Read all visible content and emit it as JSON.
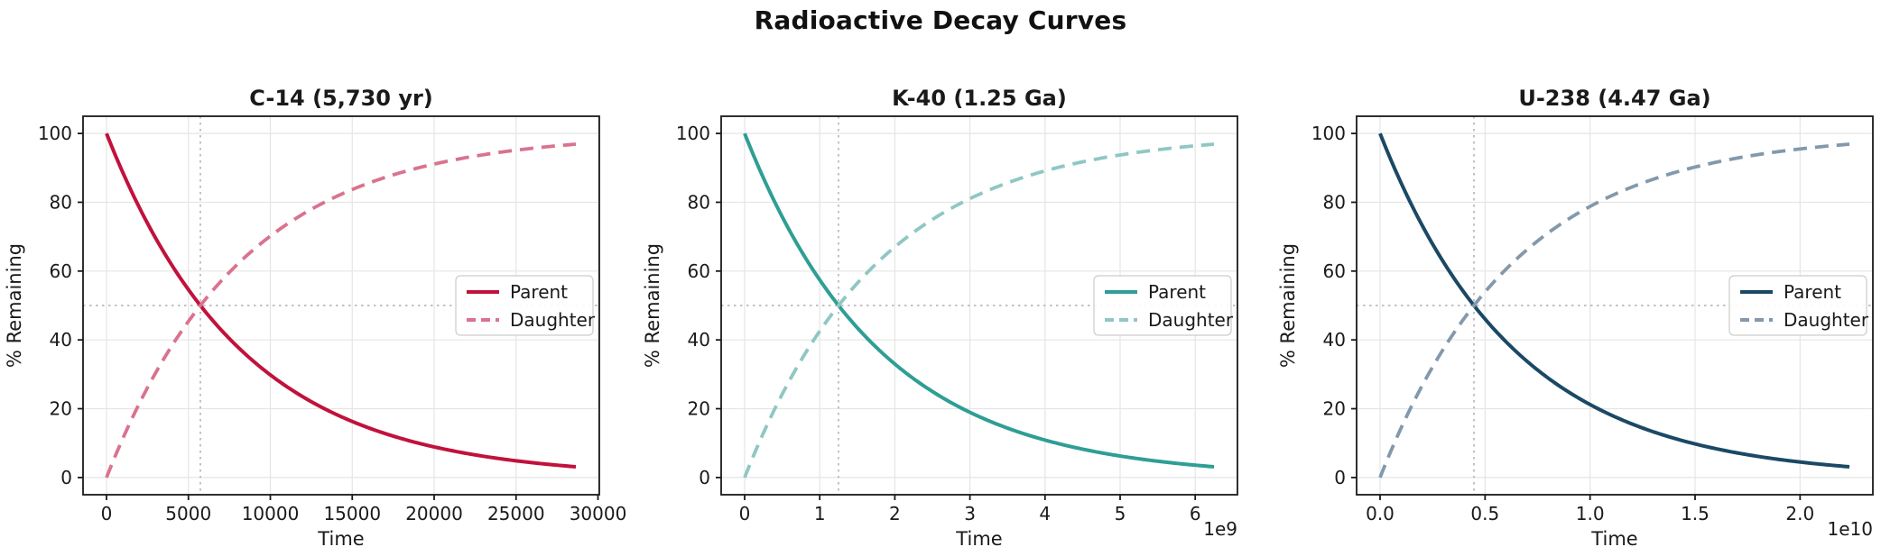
{
  "figure": {
    "title": "Radioactive Decay Curves",
    "background": "#ffffff"
  },
  "style": {
    "spine_color": "#1a1a1a",
    "text_color": "#1a1a1a",
    "grid_color": "#e5e5e5",
    "crosshair_color": "#c2c2c2",
    "legend_border": "#cccccc",
    "legend_background": "#ffffff"
  },
  "chart_data": [
    {
      "type": "line",
      "id": "c14",
      "title": "C-14 (5,730 yr)",
      "isotope": "C-14",
      "half_life": 5730,
      "half_life_label": "5,730 yr",
      "xlabel": "Time",
      "ylabel": "% Remaining",
      "xlim": [
        -1432.5,
        30082.5
      ],
      "ylim": [
        -5,
        105
      ],
      "x_ticks": [
        0,
        5000,
        10000,
        15000,
        20000,
        25000,
        30000
      ],
      "x_tick_labels": [
        "0",
        "5000",
        "10000",
        "15000",
        "20000",
        "25000",
        "30000"
      ],
      "y_ticks": [
        0,
        20,
        40,
        60,
        80,
        100
      ],
      "y_tick_labels": [
        "0",
        "20",
        "40",
        "60",
        "80",
        "100"
      ],
      "offset_label": "",
      "crosshair": {
        "x": 5730,
        "y": 50
      },
      "legend": {
        "location": "center right",
        "entries": [
          "Parent",
          "Daughter"
        ]
      },
      "series": [
        {
          "name": "Parent",
          "kind": "decay",
          "color": "#C1123C",
          "line_style": "solid",
          "x": [
            0,
            2865,
            5730,
            8595,
            11460,
            14325,
            17190,
            20055,
            22920,
            25785,
            28650
          ],
          "y": [
            100,
            70.7,
            50,
            35.4,
            25,
            17.7,
            12.5,
            8.8,
            6.3,
            4.4,
            3.1
          ]
        },
        {
          "name": "Daughter",
          "kind": "ingrowth",
          "color": "#D9738E",
          "line_style": "dashed",
          "x": [
            0,
            2865,
            5730,
            8595,
            11460,
            14325,
            17190,
            20055,
            22920,
            25785,
            28650
          ],
          "y": [
            0,
            29.3,
            50,
            64.6,
            75,
            82.3,
            87.5,
            91.2,
            93.8,
            95.6,
            96.9
          ]
        }
      ]
    },
    {
      "type": "line",
      "id": "k40",
      "title": "K-40 (1.25 Ga)",
      "isotope": "K-40",
      "half_life": 1250000000,
      "half_life_label": "1.25 Ga",
      "xlabel": "Time",
      "ylabel": "% Remaining",
      "xlim": [
        -312500000,
        6562500000
      ],
      "ylim": [
        -5,
        105
      ],
      "x_ticks": [
        0,
        1000000000,
        2000000000,
        3000000000,
        4000000000,
        5000000000,
        6000000000
      ],
      "x_tick_labels": [
        "0",
        "1",
        "2",
        "3",
        "4",
        "5",
        "6"
      ],
      "y_ticks": [
        0,
        20,
        40,
        60,
        80,
        100
      ],
      "y_tick_labels": [
        "0",
        "20",
        "40",
        "60",
        "80",
        "100"
      ],
      "offset_label": "1e9",
      "crosshair": {
        "x": 1250000000,
        "y": 50
      },
      "legend": {
        "location": "center right",
        "entries": [
          "Parent",
          "Daughter"
        ]
      },
      "series": [
        {
          "name": "Parent",
          "kind": "decay",
          "color": "#2F9E94",
          "line_style": "solid",
          "x": [
            0,
            625000000,
            1250000000,
            1875000000,
            2500000000,
            3125000000,
            3750000000,
            4375000000,
            5000000000,
            5625000000,
            6250000000
          ],
          "y": [
            100,
            70.7,
            50,
            35.4,
            25,
            17.7,
            12.5,
            8.8,
            6.3,
            4.4,
            3.1
          ]
        },
        {
          "name": "Daughter",
          "kind": "ingrowth",
          "color": "#8FC7C3",
          "line_style": "dashed",
          "x": [
            0,
            625000000,
            1250000000,
            1875000000,
            2500000000,
            3125000000,
            3750000000,
            4375000000,
            5000000000,
            5625000000,
            6250000000
          ],
          "y": [
            0,
            29.3,
            50,
            64.6,
            75,
            82.3,
            87.5,
            91.2,
            93.8,
            95.6,
            96.9
          ]
        }
      ]
    },
    {
      "type": "line",
      "id": "u238",
      "title": "U-238 (4.47 Ga)",
      "isotope": "U-238",
      "half_life": 4470000000,
      "half_life_label": "4.47 Ga",
      "xlabel": "Time",
      "ylabel": "% Remaining",
      "xlim": [
        -1117500000,
        23467500000
      ],
      "ylim": [
        -5,
        105
      ],
      "x_ticks": [
        0,
        5000000000,
        10000000000,
        15000000000,
        20000000000
      ],
      "x_tick_labels": [
        "0.0",
        "0.5",
        "1.0",
        "1.5",
        "2.0"
      ],
      "y_ticks": [
        0,
        20,
        40,
        60,
        80,
        100
      ],
      "y_tick_labels": [
        "0",
        "20",
        "40",
        "60",
        "80",
        "100"
      ],
      "offset_label": "1e10",
      "crosshair": {
        "x": 4470000000,
        "y": 50
      },
      "legend": {
        "location": "center right",
        "entries": [
          "Parent",
          "Daughter"
        ]
      },
      "series": [
        {
          "name": "Parent",
          "kind": "decay",
          "color": "#1B4965",
          "line_style": "solid",
          "x": [
            0,
            2235000000,
            4470000000,
            6705000000,
            8940000000,
            11175000000,
            13410000000,
            15645000000,
            17880000000,
            20115000000,
            22350000000
          ],
          "y": [
            100,
            70.7,
            50,
            35.4,
            25,
            17.7,
            12.5,
            8.8,
            6.3,
            4.4,
            3.1
          ]
        },
        {
          "name": "Daughter",
          "kind": "ingrowth",
          "color": "#8399AB",
          "line_style": "dashed",
          "x": [
            0,
            2235000000,
            4470000000,
            6705000000,
            8940000000,
            11175000000,
            13410000000,
            15645000000,
            17880000000,
            20115000000,
            22350000000
          ],
          "y": [
            0,
            29.3,
            50,
            64.6,
            75,
            82.3,
            87.5,
            91.2,
            93.8,
            95.6,
            96.9
          ]
        }
      ]
    }
  ]
}
